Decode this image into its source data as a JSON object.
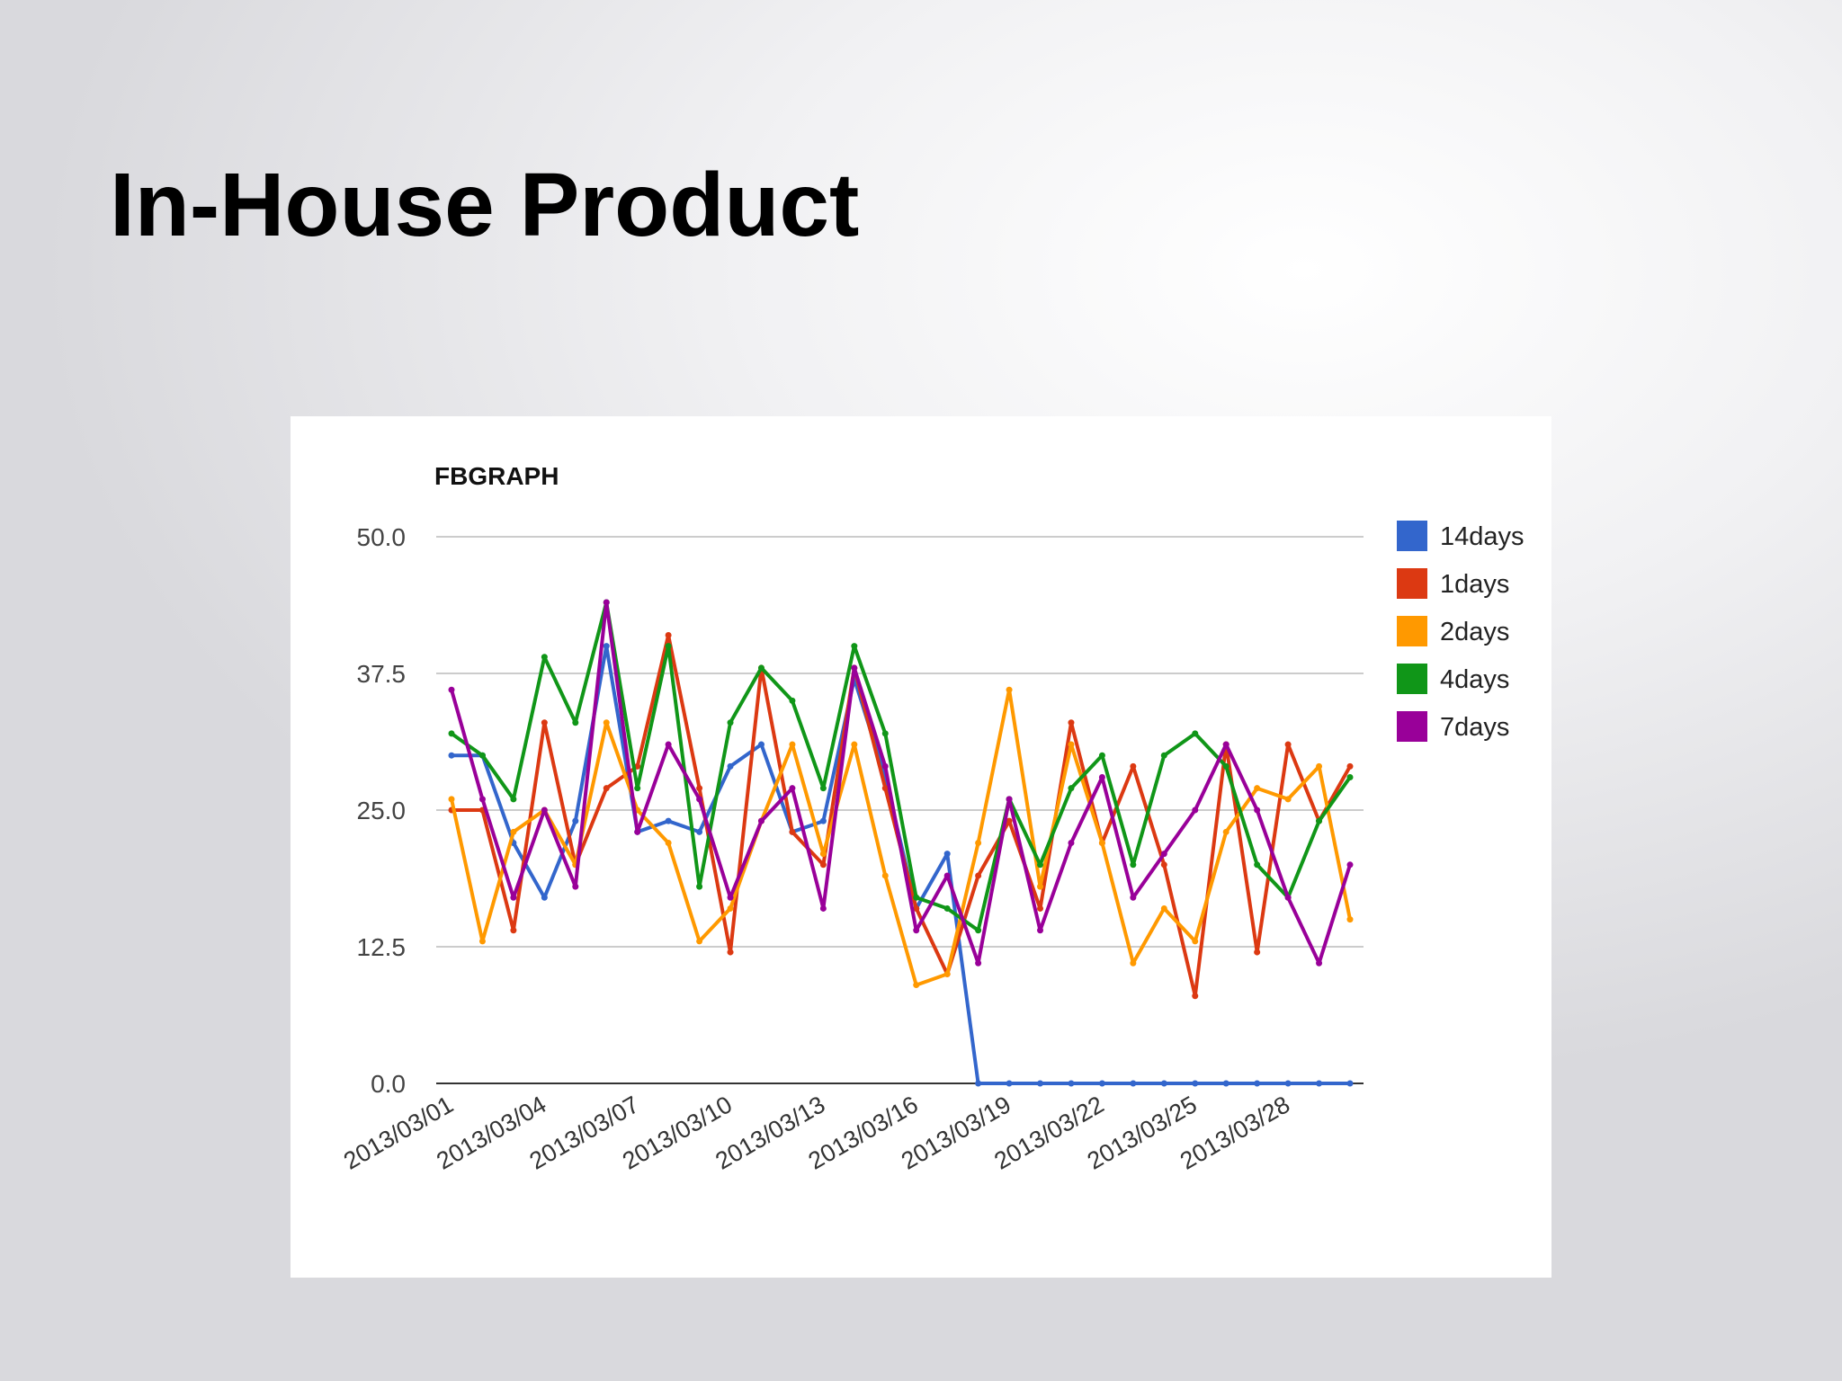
{
  "slide": {
    "title": "In-House Product"
  },
  "chart_data": {
    "type": "line",
    "title": "FBGRAPH",
    "xlabel": "",
    "ylabel": "",
    "ylim": [
      0,
      50
    ],
    "y_ticks": [
      "0.0",
      "12.5",
      "25.0",
      "37.5",
      "50.0"
    ],
    "x": [
      "2013/03/01",
      "2013/03/02",
      "2013/03/03",
      "2013/03/04",
      "2013/03/05",
      "2013/03/06",
      "2013/03/07",
      "2013/03/08",
      "2013/03/09",
      "2013/03/10",
      "2013/03/11",
      "2013/03/12",
      "2013/03/13",
      "2013/03/14",
      "2013/03/15",
      "2013/03/16",
      "2013/03/17",
      "2013/03/18",
      "2013/03/19",
      "2013/03/20",
      "2013/03/21",
      "2013/03/22",
      "2013/03/23",
      "2013/03/24",
      "2013/03/25",
      "2013/03/26",
      "2013/03/27",
      "2013/03/28",
      "2013/03/29",
      "2013/03/30"
    ],
    "x_tick_labels": [
      "2013/03/01",
      "2013/03/04",
      "2013/03/07",
      "2013/03/10",
      "2013/03/13",
      "2013/03/16",
      "2013/03/19",
      "2013/03/22",
      "2013/03/25",
      "2013/03/28"
    ],
    "grid": true,
    "legend_position": "right",
    "series": [
      {
        "name": "14days",
        "color": "#3366cc",
        "values": [
          30,
          30,
          22,
          17,
          24,
          40,
          23,
          24,
          23,
          29,
          31,
          23,
          24,
          37,
          28,
          16,
          21,
          0,
          0,
          0,
          0,
          0,
          0,
          0,
          0,
          0,
          0,
          0,
          0,
          0
        ]
      },
      {
        "name": "1days",
        "color": "#dc3912",
        "values": [
          25,
          25,
          14,
          33,
          20,
          27,
          29,
          41,
          27,
          12,
          38,
          23,
          20,
          38,
          27,
          16,
          10,
          19,
          24,
          16,
          33,
          22,
          29,
          20,
          8,
          31,
          12,
          31,
          24,
          29
        ]
      },
      {
        "name": "2days",
        "color": "#ff9900",
        "values": [
          26,
          13,
          23,
          25,
          20,
          33,
          25,
          22,
          13,
          16,
          24,
          31,
          21,
          31,
          19,
          9,
          10,
          22,
          36,
          18,
          31,
          22,
          11,
          16,
          13,
          23,
          27,
          26,
          29,
          15
        ]
      },
      {
        "name": "4days",
        "color": "#109618",
        "values": [
          32,
          30,
          26,
          39,
          33,
          44,
          27,
          40,
          18,
          33,
          38,
          35,
          27,
          40,
          32,
          17,
          16,
          14,
          26,
          20,
          27,
          30,
          20,
          30,
          32,
          29,
          20,
          17,
          24,
          28
        ]
      },
      {
        "name": "7days",
        "color": "#990099",
        "values": [
          36,
          26,
          17,
          25,
          18,
          44,
          23,
          31,
          26,
          17,
          24,
          27,
          16,
          38,
          29,
          14,
          19,
          11,
          26,
          14,
          22,
          28,
          17,
          21,
          25,
          31,
          25,
          17,
          11,
          20
        ]
      }
    ],
    "legend_order": [
      "14days",
      "1days",
      "2days",
      "4days",
      "7days"
    ]
  }
}
